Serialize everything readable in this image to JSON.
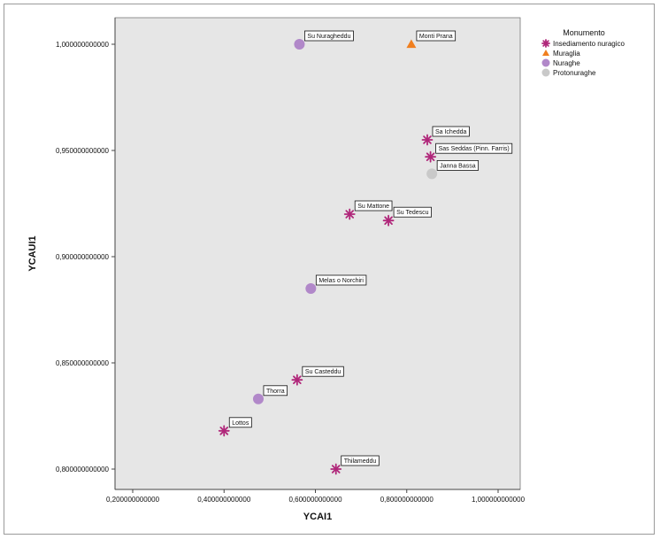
{
  "chart_data": {
    "type": "scatter",
    "xlabel": "YCAI1",
    "ylabel": "YCAUI1",
    "xlim": [
      0.2,
      1.0
    ],
    "ylim": [
      0.8,
      1.0
    ],
    "x_ticks": [
      "0,200000000000",
      "0,400000000000",
      "0,600000000000",
      "0,800000000000",
      "1,000000000000"
    ],
    "x_tick_values": [
      0.2,
      0.4,
      0.6,
      0.8,
      1.0
    ],
    "y_ticks": [
      "1,000000000000",
      "0,950000000000",
      "0,900000000000",
      "0,850000000000",
      "0,800000000000"
    ],
    "y_tick_values": [
      1.0,
      0.95,
      0.9,
      0.85,
      0.8
    ],
    "legend": {
      "title": "Monumento",
      "position": "top-right",
      "entries": [
        {
          "name": "Insediamento nuragico",
          "marker": "asterisk",
          "color": "#b0277a"
        },
        {
          "name": "Muraglia",
          "marker": "triangle",
          "color": "#f07f1f"
        },
        {
          "name": "Nuraghe",
          "marker": "circle",
          "color": "#b188c9"
        },
        {
          "name": "Protonuraghe",
          "marker": "circle",
          "color": "#c9c9c9"
        }
      ]
    },
    "plot_background": "#e6e6e6",
    "grid": false,
    "points": [
      {
        "label": "Su Nuragheddu",
        "x": 0.565,
        "y": 1.0,
        "series": "Nuraghe"
      },
      {
        "label": "Monti Prana",
        "x": 0.81,
        "y": 1.0,
        "series": "Muraglia"
      },
      {
        "label": "Sa Ichedda",
        "x": 0.845,
        "y": 0.955,
        "series": "Insediamento nuragico"
      },
      {
        "label": "Sas Seddas (Pinn. Farris)",
        "x": 0.852,
        "y": 0.947,
        "series": "Insediamento nuragico"
      },
      {
        "label": "Janna Bassa",
        "x": 0.855,
        "y": 0.939,
        "series": "Protonuraghe"
      },
      {
        "label": "Su Mattone",
        "x": 0.675,
        "y": 0.92,
        "series": "Insediamento nuragico"
      },
      {
        "label": "Su Tedescu",
        "x": 0.76,
        "y": 0.917,
        "series": "Insediamento nuragico"
      },
      {
        "label": "Melas o Norchiri",
        "x": 0.59,
        "y": 0.885,
        "series": "Nuraghe"
      },
      {
        "label": "Su Casteddu",
        "x": 0.56,
        "y": 0.842,
        "series": "Insediamento nuragico"
      },
      {
        "label": "Thorra",
        "x": 0.475,
        "y": 0.833,
        "series": "Nuraghe"
      },
      {
        "label": "Lottos",
        "x": 0.4,
        "y": 0.818,
        "series": "Insediamento nuragico"
      },
      {
        "label": "Thilameddu",
        "x": 0.645,
        "y": 0.8,
        "series": "Insediamento nuragico"
      }
    ]
  }
}
